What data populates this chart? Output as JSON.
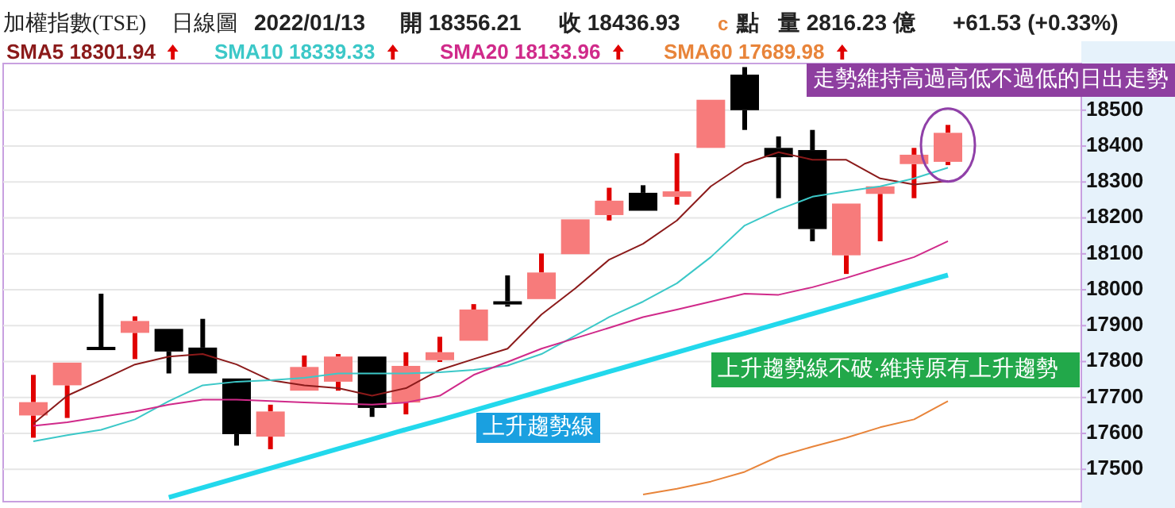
{
  "chart_data": {
    "type": "candlestick",
    "title": "加權指數(TSE)",
    "subtitle": "日線圖",
    "annotations": [
      "2022/01/13",
      "開 18356.21",
      "收 18436.93",
      "c",
      "點",
      "量 2816.23 億",
      "+61.53 (+0.33%)",
      "走勢維持高過高低不過低的日出走勢",
      "上升趨勢線",
      "上升趨勢線不破·維持原有上升趨勢"
    ],
    "categories": [
      null,
      null,
      null,
      null,
      null,
      null,
      null,
      null,
      null,
      null,
      null,
      null,
      null,
      null,
      null,
      null,
      null,
      null,
      null,
      null,
      null,
      null,
      null,
      null,
      null,
      null,
      null,
      null
    ],
    "ohlc": [
      [
        17650,
        17763,
        17588,
        17687
      ],
      [
        17734,
        17797,
        17643,
        17797
      ],
      [
        17841,
        17989,
        17832,
        17832
      ],
      [
        17880,
        17926,
        17807,
        17913
      ],
      [
        17891,
        17891,
        17767,
        17828
      ],
      [
        17839,
        17919,
        17767,
        17767
      ],
      [
        17753,
        17753,
        17566,
        17598
      ],
      [
        17591,
        17680,
        17556,
        17661
      ],
      [
        17719,
        17817,
        17719,
        17785
      ],
      [
        17744,
        17821,
        17719,
        17814
      ],
      [
        17814,
        17814,
        17646,
        17671
      ],
      [
        17686,
        17826,
        17653,
        17788
      ],
      [
        17804,
        17869,
        17799,
        17826
      ],
      [
        17858,
        17960,
        17858,
        17945
      ],
      [
        17968,
        18040,
        17953,
        17959
      ],
      [
        17974,
        18101,
        17974,
        18048
      ],
      [
        18099,
        18196,
        18099,
        18196
      ],
      [
        18208,
        18284,
        18193,
        18248
      ],
      [
        18270,
        18291,
        18220,
        18220
      ],
      [
        18259,
        18380,
        18237,
        18274
      ],
      [
        18395,
        18529,
        18395,
        18529
      ],
      [
        18599,
        18620,
        18445,
        18500
      ],
      [
        18395,
        18427,
        18255,
        18369
      ],
      [
        18389,
        18445,
        18135,
        18169
      ],
      [
        18096,
        18240,
        18044,
        18240
      ],
      [
        18267,
        18288,
        18135,
        18288
      ],
      [
        18350,
        18395,
        18255,
        18376
      ],
      [
        18356.21,
        18459,
        18347,
        18436.93
      ]
    ],
    "series": [
      {
        "type": "line",
        "name": "SMA5 18301.94",
        "color": "#8b1a1a",
        "values": [
          17627,
          17705,
          17748,
          17792,
          17814,
          17821,
          17792,
          17748,
          17734,
          17726,
          17705,
          17726,
          17777,
          17807,
          17836,
          17931,
          18004,
          18084,
          18128,
          18193,
          18288,
          18351,
          18383,
          18362,
          18362,
          18310,
          18293,
          18303
        ]
      },
      {
        "type": "line",
        "name": "SMA10 18339.33",
        "color": "#3cc8c8",
        "values": [
          17578,
          17595,
          17610,
          17639,
          17690,
          17734,
          17744,
          17748,
          17755,
          17767,
          17767,
          17767,
          17770,
          17777,
          17789,
          17821,
          17872,
          17924,
          17967,
          18018,
          18091,
          18179,
          18223,
          18259,
          18274,
          18288,
          18310,
          18340
        ]
      },
      {
        "type": "line",
        "name": "SMA20 18133.96",
        "color": "#d02a8a",
        "values": [
          17621,
          17631,
          17646,
          17661,
          17680,
          17694,
          17694,
          17690,
          17686,
          17683,
          17680,
          17686,
          17705,
          17763,
          17799,
          17836,
          17865,
          17894,
          17924,
          17945,
          17967,
          17989,
          17986,
          18007,
          18033,
          18062,
          18091,
          18135
        ]
      },
      {
        "type": "line",
        "name": "SMA60 17689.98",
        "color": "#e8843a",
        "values": [
          null,
          null,
          null,
          null,
          null,
          null,
          null,
          null,
          null,
          null,
          null,
          null,
          null,
          null,
          null,
          null,
          null,
          null,
          17430,
          17446,
          17466,
          17493,
          17536,
          17563,
          17588,
          17617,
          17639,
          17690
        ]
      },
      {
        "type": "line",
        "color": "#22d8ec",
        "values": [
          null,
          null,
          null,
          null,
          17422,
          17449,
          17476,
          17503,
          17530,
          17557,
          17584,
          17611,
          17637,
          17664,
          17691,
          17718,
          17745,
          17772,
          17799,
          17826,
          17853,
          17879,
          17906,
          17933,
          17960,
          17987,
          18014,
          18041
        ]
      }
    ],
    "ylim": [
      17410,
      18630
    ],
    "yticks": [
      17500,
      17600,
      17700,
      17800,
      17900,
      18000,
      18100,
      18200,
      18300,
      18400,
      18500
    ],
    "grid": "y",
    "legend": "top left"
  }
}
